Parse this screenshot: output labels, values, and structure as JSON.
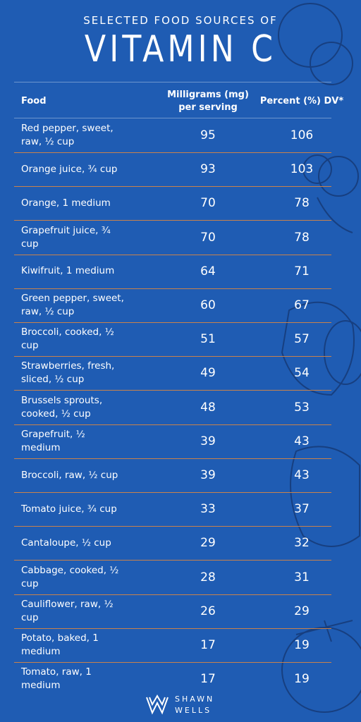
{
  "header": {
    "supertitle": "SELECTED FOOD SOURCES OF",
    "title": "VITAMIN C"
  },
  "table": {
    "columns": [
      "Food",
      "Milligrams (mg) per serving",
      "Percent (%) DV*"
    ],
    "rows": [
      [
        "Red pepper, sweet, raw, ½ cup",
        95,
        106
      ],
      [
        "Orange juice, ¾ cup",
        93,
        103
      ],
      [
        "Orange, 1 medium",
        70,
        78
      ],
      [
        "Grapefruit juice, ¾ cup",
        70,
        78
      ],
      [
        "Kiwifruit, 1 medium",
        64,
        71
      ],
      [
        "Green pepper, sweet, raw, ½ cup",
        60,
        67
      ],
      [
        "Broccoli, cooked, ½ cup",
        51,
        57
      ],
      [
        "Strawberries, fresh, sliced, ½ cup",
        49,
        54
      ],
      [
        "Brussels sprouts, cooked, ½ cup",
        48,
        53
      ],
      [
        "Grapefruit, ½ medium",
        39,
        43
      ],
      [
        "Broccoli, raw, ½ cup",
        39,
        43
      ],
      [
        "Tomato juice, ¾ cup",
        33,
        37
      ],
      [
        "Cantaloupe, ½ cup",
        29,
        32
      ],
      [
        "Cabbage, cooked, ½ cup",
        28,
        31
      ],
      [
        "Cauliflower, raw, ½ cup",
        26,
        29
      ],
      [
        "Potato, baked, 1 medium",
        17,
        19
      ],
      [
        "Tomato, raw, 1 medium",
        17,
        19
      ]
    ]
  },
  "footer": {
    "brand_line1": "SHAWN",
    "brand_line2": "WELLS"
  }
}
